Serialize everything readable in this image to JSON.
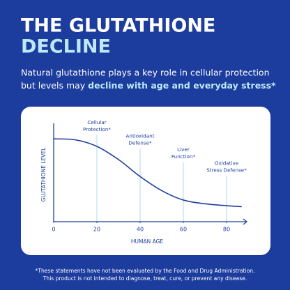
{
  "headline": {
    "line1": "THE GLUTATHIONE",
    "line2": "DECLINE"
  },
  "intro": {
    "line1": "Natural glutathione plays a key role in cellular protection",
    "line2_start": "but levels may ",
    "line2_emphasis": "decline with age and everyday stress*"
  },
  "chart_data": {
    "type": "line",
    "xlabel": "HUMAN AGE",
    "ylabel": "GLUTATHIONE LEVEL",
    "x": [
      0,
      10,
      20,
      30,
      40,
      50,
      60,
      70,
      80,
      87
    ],
    "series": [
      {
        "color": "#1f3f9e",
        "values": [
          88,
          87,
          80,
          66,
          48,
          33,
          23,
          19,
          17,
          16
        ]
      }
    ],
    "xlim": [
      0,
      90
    ],
    "xticks": [
      0,
      20,
      40,
      60,
      80
    ],
    "ylim": [
      0,
      100
    ],
    "annotations": [
      {
        "x": 20,
        "lines": [
          "Cellular",
          "Protection*"
        ]
      },
      {
        "x": 40,
        "lines": [
          "Antioxidant",
          "Defense*"
        ]
      },
      {
        "x": 60,
        "lines": [
          "Liver",
          "Function*"
        ]
      },
      {
        "x": 80,
        "lines": [
          "Oxidative",
          "Stress Defense*"
        ]
      }
    ]
  },
  "disclaimer": {
    "line1": "*These statements have not been evaluated by the Food and Drug Administration.",
    "line2": "This product is not intended to diagnose, treat, cure, or prevent any disease."
  }
}
